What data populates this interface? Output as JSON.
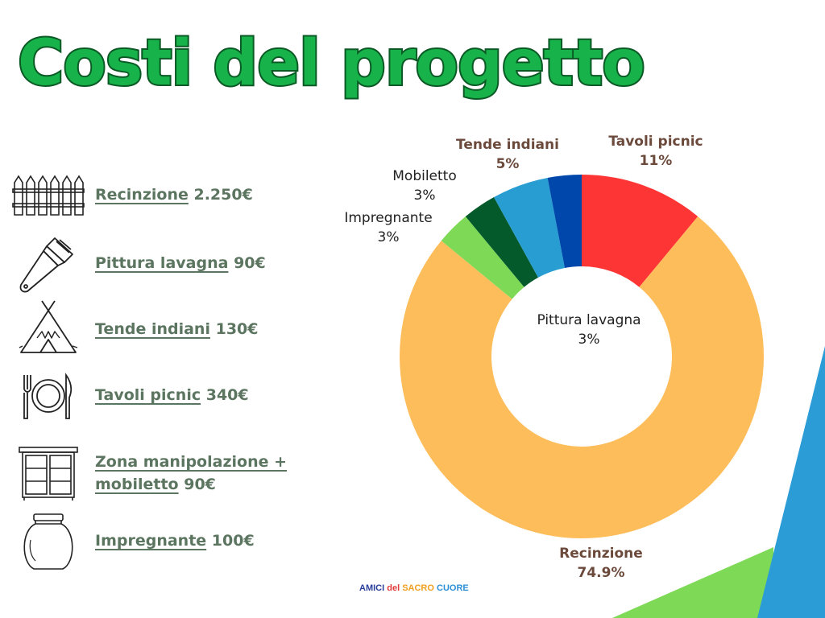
{
  "title": "Costi del progetto",
  "items": [
    {
      "name": "Recinzione",
      "amount": "2.250€",
      "icon": "fence-icon"
    },
    {
      "name": "Pittura lavagna",
      "amount": "90€",
      "icon": "paintbrush-icon"
    },
    {
      "name": "Tende indiani",
      "amount": "130€",
      "icon": "teepee-icon"
    },
    {
      "name": "Tavoli picnic",
      "amount": "340€",
      "icon": "plate-cutlery-icon"
    },
    {
      "name": "Zona manipolazione + mobiletto",
      "name_line1": "Zona manipolazione +",
      "name_line2": "mobiletto",
      "amount": "90€",
      "icon": "cabinet-icon"
    },
    {
      "name": "Impregnante",
      "amount": "100€",
      "icon": "jar-icon"
    }
  ],
  "brand": [
    "AMICI",
    "del",
    "SACRO",
    "CUORE"
  ],
  "chart_data": {
    "type": "pie",
    "variant": "donut",
    "slices": [
      {
        "label": "Tavoli picnic",
        "value": 11,
        "display": "11%",
        "color": "#fe3535"
      },
      {
        "label": "Recinzione",
        "value": 74.9,
        "display": "74.9%",
        "color": "#fdbd5b"
      },
      {
        "label": "Impregnante",
        "value": 3,
        "display": "3%",
        "color": "#7ed957"
      },
      {
        "label": "Mobiletto",
        "value": 3,
        "display": "3%",
        "color": "#045a2b"
      },
      {
        "label": "Tende indiani",
        "value": 5,
        "display": "5%",
        "color": "#289dd2"
      },
      {
        "label": "Pittura lavagna",
        "value": 3,
        "display": "3%",
        "color": "#0047ab"
      }
    ]
  },
  "colors": {
    "title": "#17b24a",
    "title_outline": "#0b5a25",
    "item_text": "#5c7560",
    "label_bold": "#6b4a3c",
    "deco_blue": "#2b9cd6",
    "deco_green": "#7ed957"
  }
}
